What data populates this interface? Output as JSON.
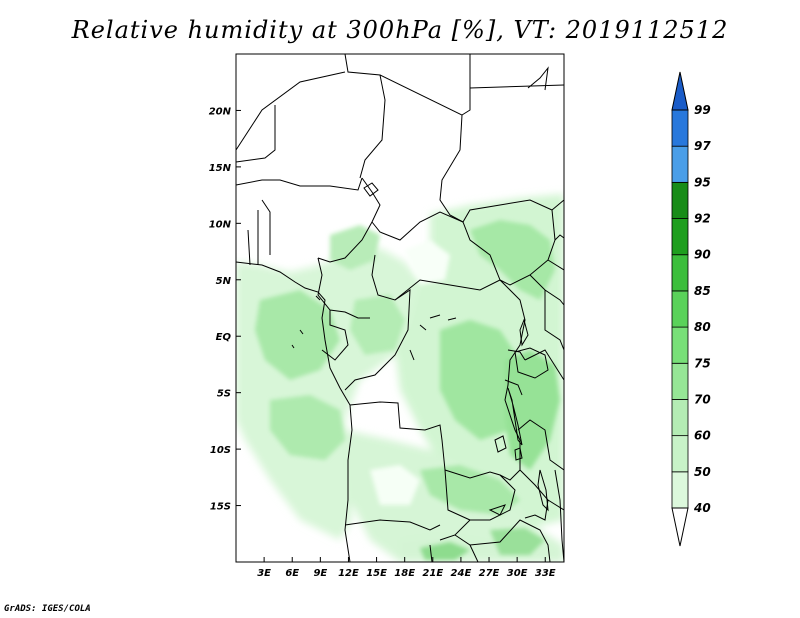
{
  "title": "Relative humidity at 300hPa [%], VT: 2019112512",
  "credit": "GrADS: IGES/COLA",
  "map": {
    "lon_range": [
      0,
      35
    ],
    "lat_range": [
      -20,
      25
    ],
    "lon_ticks": [
      "3E",
      "6E",
      "9E",
      "12E",
      "15E",
      "18E",
      "21E",
      "24E",
      "27E",
      "30E",
      "33E"
    ],
    "lat_ticks": [
      "20N",
      "15N",
      "10N",
      "5N",
      "EQ",
      "5S",
      "10S",
      "15S"
    ]
  },
  "colorbar": {
    "labels": [
      "40",
      "50",
      "60",
      "70",
      "75",
      "80",
      "85",
      "90",
      "92",
      "95",
      "97",
      "99"
    ],
    "colors": [
      "#f0fff0",
      "#dcf8dc",
      "#c8f2c8",
      "#b4ecb4",
      "#96e696",
      "#78e078",
      "#5ad25a",
      "#3cbe3c",
      "#1e9e1e",
      "#188c18",
      "#4a9ee8",
      "#2878dc",
      "#1a5cc8"
    ],
    "extend_low_color": "#ffffff",
    "extend_high_color": "#1a5cc8"
  }
}
